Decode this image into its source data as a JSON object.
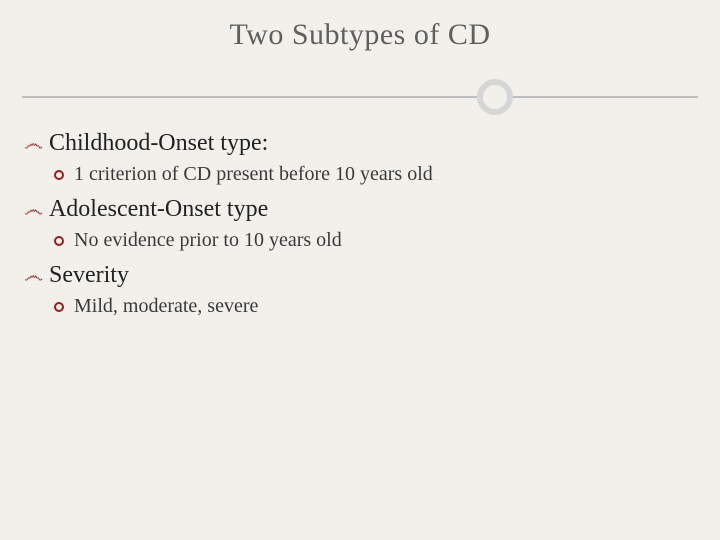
{
  "slide": {
    "title": "Two Subtypes of CD",
    "title_fontsize": 30,
    "title_color": "#5f5f5f",
    "background_color": "#f2f0eb",
    "divider": {
      "line_color": "#bfbfbf",
      "circle_border_color": "#d6d6d6",
      "circle_diameter": 36,
      "circle_border_width": 6,
      "circle_x_percent": 70
    },
    "bullet_colors": {
      "level1_glyph_color": "#9a1c1c",
      "level2_ring_color": "#9a1c1c"
    },
    "font_sizes": {
      "level1": 24,
      "level2": 20
    },
    "items": [
      {
        "label": "Childhood-Onset type:",
        "sub": {
          "label": "1 criterion of CD present before 10 years old"
        }
      },
      {
        "label": "Adolescent-Onset type",
        "sub": {
          "label": "No evidence prior to 10 years old"
        }
      },
      {
        "label": "Severity",
        "sub": {
          "label": "Mild, moderate, severe"
        }
      }
    ]
  }
}
